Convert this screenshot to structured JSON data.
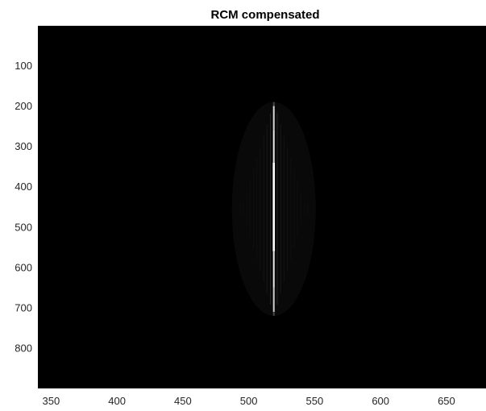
{
  "chart_data": {
    "type": "heatmap",
    "title": "RCM compensated",
    "xlabel": "",
    "ylabel": "",
    "xlim": [
      340,
      680
    ],
    "ylim": [
      1,
      900
    ],
    "y_direction": "reversed",
    "colormap": "gray",
    "grid": false,
    "xticks": [
      350,
      400,
      450,
      500,
      550,
      600,
      650
    ],
    "yticks": [
      100,
      200,
      300,
      400,
      500,
      600,
      700,
      800
    ],
    "feature": {
      "description_type": "vertical bright line",
      "x": 519,
      "y_range": [
        190,
        720
      ],
      "peak_segments": [
        {
          "y_from": 200,
          "y_to": 260,
          "intensity": 0.75
        },
        {
          "y_from": 260,
          "y_to": 340,
          "intensity": 0.85
        },
        {
          "y_from": 340,
          "y_to": 560,
          "intensity": 1.0
        },
        {
          "y_from": 560,
          "y_to": 650,
          "intensity": 0.85
        },
        {
          "y_from": 650,
          "y_to": 710,
          "intensity": 0.7
        }
      ]
    }
  }
}
